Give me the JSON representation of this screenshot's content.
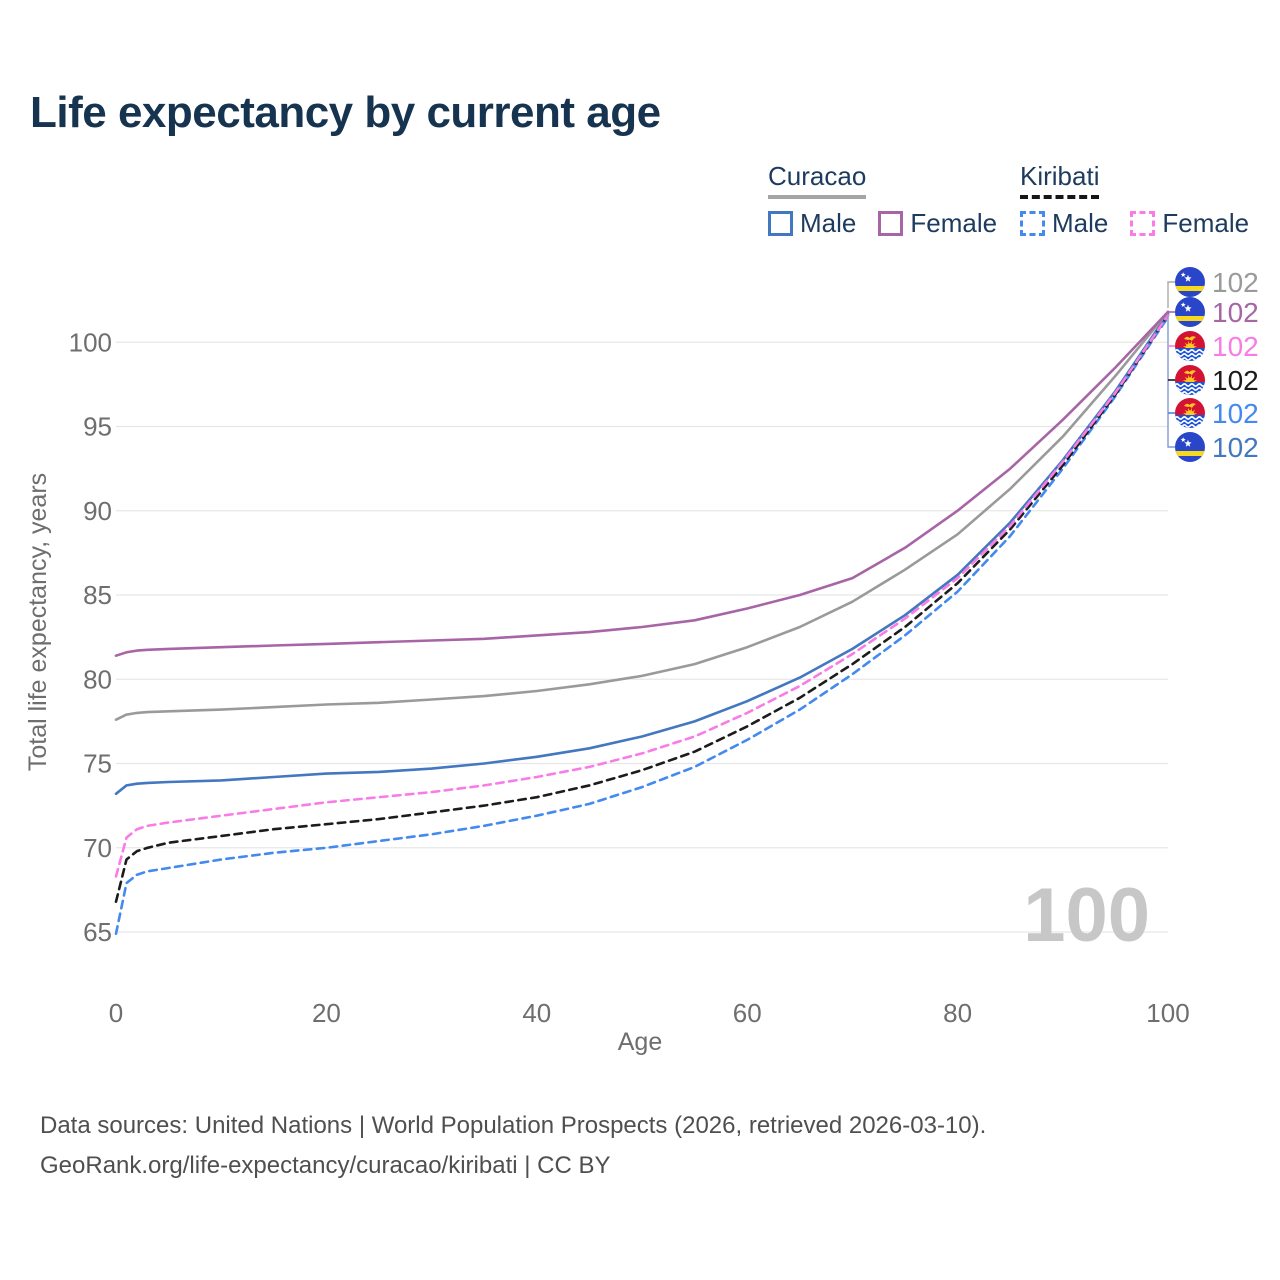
{
  "title": "Life expectancy by current age",
  "legend": {
    "groups": [
      {
        "label": "Curacao",
        "line_style": "solid",
        "line_color": "#a5a5a5",
        "items": [
          {
            "label": "Male",
            "color": "#4377c0",
            "style": "solid"
          },
          {
            "label": "Female",
            "color": "#a765a5",
            "style": "solid"
          }
        ]
      },
      {
        "label": "Kiribati",
        "line_style": "dashed",
        "line_color": "#161616",
        "items": [
          {
            "label": "Male",
            "color": "#4389f0",
            "style": "dashed"
          },
          {
            "label": "Female",
            "color": "#f97ce6",
            "style": "dashed"
          }
        ]
      }
    ]
  },
  "watermark": "100",
  "footer": {
    "line1": "Data sources: United Nations | World Population Prospects (2026, retrieved 2026-03-10).",
    "line2": "GeoRank.org/life-expectancy/curacao/kiribati | CC BY"
  },
  "chart_data": {
    "type": "line",
    "title": "Life expectancy by current age",
    "xlabel": "Age",
    "ylabel": "Total life expectancy, years",
    "x_ticks": [
      0,
      20,
      40,
      60,
      80,
      100
    ],
    "y_ticks": [
      65,
      70,
      75,
      80,
      85,
      90,
      95,
      100
    ],
    "xlim": [
      0,
      100
    ],
    "ylim": [
      63,
      103
    ],
    "grid": "horizontal",
    "legend_position": "top-right",
    "x": [
      0,
      1,
      2,
      3,
      5,
      10,
      15,
      20,
      25,
      30,
      35,
      40,
      45,
      50,
      55,
      60,
      65,
      70,
      75,
      80,
      85,
      90,
      95,
      100
    ],
    "series": [
      {
        "name": "Curacao Male",
        "country": "Curacao",
        "sex": "Male",
        "color": "#4377c0",
        "dash": false,
        "end_label": "102",
        "values": [
          73.2,
          73.7,
          73.8,
          73.85,
          73.9,
          74.0,
          74.2,
          74.4,
          74.5,
          74.7,
          75.0,
          75.4,
          75.9,
          76.6,
          77.5,
          78.7,
          80.1,
          81.8,
          83.8,
          86.2,
          89.3,
          93.0,
          97.1,
          101.7
        ]
      },
      {
        "name": "Kiribati Male",
        "country": "Kiribati",
        "sex": "Male",
        "color": "#4389f0",
        "dash": true,
        "end_label": "102",
        "values": [
          64.9,
          67.9,
          68.4,
          68.6,
          68.8,
          69.3,
          69.7,
          70.0,
          70.4,
          70.8,
          71.3,
          71.9,
          72.6,
          73.6,
          74.8,
          76.4,
          78.2,
          80.3,
          82.6,
          85.2,
          88.5,
          92.5,
          96.8,
          101.5
        ]
      },
      {
        "name": "Kiribati Total",
        "country": "Kiribati",
        "sex": "Total",
        "color": "#1c1c1c",
        "dash": true,
        "end_label": "102",
        "values": [
          66.8,
          69.3,
          69.8,
          70.0,
          70.3,
          70.7,
          71.1,
          71.4,
          71.7,
          72.1,
          72.5,
          73.0,
          73.7,
          74.6,
          75.7,
          77.2,
          78.9,
          80.9,
          83.1,
          85.7,
          88.9,
          92.7,
          96.9,
          101.6
        ]
      },
      {
        "name": "Kiribati Female",
        "country": "Kiribati",
        "sex": "Female",
        "color": "#f97ce6",
        "dash": true,
        "end_label": "102",
        "values": [
          68.3,
          70.6,
          71.1,
          71.3,
          71.5,
          71.9,
          72.3,
          72.7,
          73.0,
          73.3,
          73.7,
          74.2,
          74.8,
          75.6,
          76.6,
          78.0,
          79.6,
          81.5,
          83.6,
          86.0,
          89.1,
          92.9,
          97.0,
          101.6
        ]
      },
      {
        "name": "Curacao Total",
        "country": "Curacao",
        "sex": "Total",
        "color": "#9a9a9a",
        "dash": false,
        "end_label": "102",
        "values": [
          77.6,
          77.9,
          78.0,
          78.05,
          78.1,
          78.2,
          78.35,
          78.5,
          78.6,
          78.8,
          79.0,
          79.3,
          79.7,
          80.2,
          80.9,
          81.9,
          83.1,
          84.6,
          86.5,
          88.6,
          91.3,
          94.4,
          98.0,
          101.8
        ]
      },
      {
        "name": "Curacao Female",
        "country": "Curacao",
        "sex": "Female",
        "color": "#a765a5",
        "dash": false,
        "end_label": "102",
        "values": [
          81.4,
          81.6,
          81.7,
          81.75,
          81.8,
          81.9,
          82.0,
          82.1,
          82.2,
          82.3,
          82.4,
          82.6,
          82.8,
          83.1,
          83.5,
          84.2,
          85.0,
          86.0,
          87.8,
          90.0,
          92.5,
          95.4,
          98.5,
          101.8
        ]
      }
    ],
    "right_labels_order": [
      "Curacao Total",
      "Curacao Female",
      "Kiribati Female",
      "Kiribati Total",
      "Kiribati Male",
      "Curacao Male"
    ]
  }
}
